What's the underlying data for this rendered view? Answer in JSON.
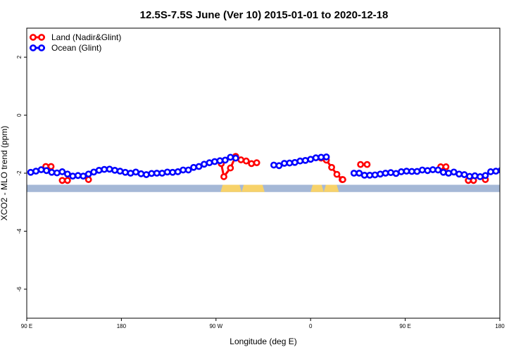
{
  "chart_data": {
    "type": "line",
    "title": "12.5S-7.5S June (Ver 10)   2015-01-01 to 2020-12-18",
    "xlabel": "Longitude (deg E)",
    "ylabel": "XCO2 - MLO trend (ppm)",
    "xlim": [
      90,
      450
    ],
    "ylim": [
      -7,
      3
    ],
    "x_ticks": [
      {
        "value": 90,
        "label": "90 E"
      },
      {
        "value": 162,
        "label": "180"
      },
      {
        "value": 234,
        "label": "90 W"
      },
      {
        "value": 306,
        "label": "0"
      },
      {
        "value": 378,
        "label": "90 E"
      },
      {
        "value": 450,
        "label": "180"
      }
    ],
    "y_ticks": [
      {
        "value": 2,
        "label": "2"
      },
      {
        "value": 0,
        "label": "0"
      },
      {
        "value": -2,
        "label": "-2"
      },
      {
        "value": -4,
        "label": "-4"
      },
      {
        "value": -6,
        "label": "-6"
      }
    ],
    "grid": false,
    "legend_position": "top-left",
    "background_band": {
      "y_range": [
        -2.65,
        -2.4
      ],
      "ocean_color": "#a5b8d6",
      "land_color": "#f7d26a",
      "land_segments": [
        [
          237.5,
          253.5
        ],
        [
          253.5,
          271
        ],
        [
          306,
          316
        ],
        [
          316,
          327.5
        ]
      ]
    },
    "series": [
      {
        "name": "Land (Nadir&Glint)",
        "color": "#ff0000",
        "points": [
          [
            104.5,
            -1.77
          ],
          [
            108.5,
            -1.77
          ],
          [
            117,
            -2.25
          ],
          [
            121,
            -2.25
          ],
          [
            137,
            -2.22
          ],
          [
            238,
            -1.67
          ],
          [
            240,
            -2.12
          ],
          [
            245,
            -1.82
          ],
          [
            249,
            -1.42
          ],
          [
            253,
            -1.54
          ],
          [
            257,
            -1.58
          ],
          [
            261,
            -1.67
          ],
          [
            265,
            -1.64
          ],
          [
            314,
            -1.48
          ],
          [
            318,
            -1.55
          ],
          [
            322,
            -1.8
          ],
          [
            326,
            -2.04
          ],
          [
            330,
            -2.22
          ],
          [
            330.5,
            -2.22
          ],
          [
            344,
            -1.7
          ],
          [
            349,
            -1.7
          ],
          [
            405,
            -1.78
          ],
          [
            409,
            -1.78
          ],
          [
            426,
            -2.25
          ],
          [
            430,
            -2.25
          ],
          [
            439,
            -2.22
          ]
        ]
      },
      {
        "name": "Ocean (Glint)",
        "color": "#0000ff",
        "points": [
          [
            93,
            -1.97
          ],
          [
            97,
            -1.93
          ],
          [
            101,
            -1.88
          ],
          [
            105,
            -1.91
          ],
          [
            109,
            -1.97
          ],
          [
            113,
            -1.99
          ],
          [
            117,
            -1.95
          ],
          [
            121,
            -2.03
          ],
          [
            125,
            -2.1
          ],
          [
            129,
            -2.08
          ],
          [
            133,
            -2.1
          ],
          [
            137,
            -2.03
          ],
          [
            141,
            -1.96
          ],
          [
            145,
            -1.9
          ],
          [
            149,
            -1.87
          ],
          [
            153,
            -1.86
          ],
          [
            157,
            -1.9
          ],
          [
            161,
            -1.93
          ],
          [
            165,
            -1.97
          ],
          [
            169,
            -2.0
          ],
          [
            173,
            -1.96
          ],
          [
            177,
            -2.02
          ],
          [
            181,
            -2.05
          ],
          [
            185,
            -2.01
          ],
          [
            189,
            -2.0
          ],
          [
            193,
            -2.0
          ],
          [
            197,
            -1.96
          ],
          [
            201,
            -1.97
          ],
          [
            205,
            -1.95
          ],
          [
            209,
            -1.89
          ],
          [
            213,
            -1.89
          ],
          [
            217,
            -1.8
          ],
          [
            221,
            -1.77
          ],
          [
            225,
            -1.69
          ],
          [
            229,
            -1.64
          ],
          [
            233,
            -1.6
          ],
          [
            237,
            -1.57
          ],
          [
            241,
            -1.55
          ],
          [
            245,
            -1.45
          ],
          [
            249,
            -1.48
          ],
          [
            278,
            -1.72
          ],
          [
            282,
            -1.74
          ],
          [
            286,
            -1.66
          ],
          [
            290,
            -1.65
          ],
          [
            294,
            -1.63
          ],
          [
            298,
            -1.58
          ],
          [
            302,
            -1.56
          ],
          [
            306,
            -1.52
          ],
          [
            310,
            -1.47
          ],
          [
            314,
            -1.45
          ],
          [
            318,
            -1.44
          ],
          [
            339,
            -2.0
          ],
          [
            343,
            -2.0
          ],
          [
            347,
            -2.07
          ],
          [
            351,
            -2.07
          ],
          [
            355,
            -2.06
          ],
          [
            359,
            -2.03
          ],
          [
            363,
            -2.0
          ],
          [
            367,
            -1.98
          ],
          [
            371,
            -2.01
          ],
          [
            375,
            -1.95
          ],
          [
            379,
            -1.93
          ],
          [
            383,
            -1.94
          ],
          [
            387,
            -1.94
          ],
          [
            391,
            -1.89
          ],
          [
            395,
            -1.91
          ],
          [
            399,
            -1.88
          ],
          [
            403,
            -1.89
          ],
          [
            407,
            -1.97
          ],
          [
            411,
            -2.0
          ],
          [
            415,
            -1.96
          ],
          [
            419,
            -2.03
          ],
          [
            423,
            -2.05
          ],
          [
            427,
            -2.11
          ],
          [
            431,
            -2.09
          ],
          [
            435,
            -2.12
          ],
          [
            439,
            -2.08
          ],
          [
            443,
            -1.95
          ],
          [
            447,
            -1.93
          ],
          [
            451,
            -1.9
          ],
          [
            455,
            -1.95
          ],
          [
            459,
            -1.97
          ],
          [
            463,
            -1.94
          ]
        ]
      }
    ]
  }
}
